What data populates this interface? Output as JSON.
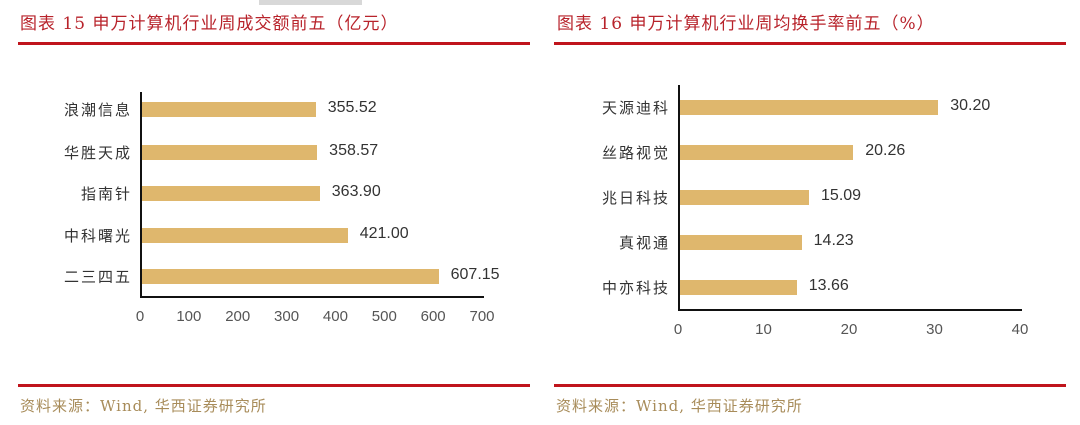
{
  "colors": {
    "title": "#b8232b",
    "rule": "#c0141c",
    "bar": "#dfb76d",
    "source": "#a88c5a"
  },
  "left": {
    "title": "图表 15 申万计算机行业周成交额前五（亿元）",
    "source": "资料来源：Wind, 华西证券研究所"
  },
  "right": {
    "title": "图表 16 申万计算机行业周均换手率前五（%）",
    "source": "资料来源：Wind, 华西证券研究所"
  },
  "chart_data": [
    {
      "type": "bar",
      "orientation": "horizontal",
      "title": "图表 15 申万计算机行业周成交额前五（亿元）",
      "categories": [
        "浪潮信息",
        "华胜天成",
        "指南针",
        "中科曙光",
        "二三四五"
      ],
      "values": [
        355.52,
        358.57,
        363.9,
        421.0,
        607.15
      ],
      "value_labels": [
        "355.52",
        "358.57",
        "363.90",
        "421.00",
        "607.15"
      ],
      "xlabel": "",
      "ylabel": "",
      "xlim": [
        0,
        700
      ],
      "xticks": [
        "0",
        "100",
        "200",
        "300",
        "400",
        "500",
        "600",
        "700"
      ],
      "grid": false,
      "legend": null,
      "source": "资料来源：Wind, 华西证券研究所"
    },
    {
      "type": "bar",
      "orientation": "horizontal",
      "title": "图表 16 申万计算机行业周均换手率前五（%）",
      "categories": [
        "天源迪科",
        "丝路视觉",
        "兆日科技",
        "真视通",
        "中亦科技"
      ],
      "values": [
        30.2,
        20.26,
        15.09,
        14.23,
        13.66
      ],
      "value_labels": [
        "30.20",
        "20.26",
        "15.09",
        "14.23",
        "13.66"
      ],
      "xlabel": "",
      "ylabel": "",
      "xlim": [
        0,
        40
      ],
      "xticks": [
        "0",
        "10",
        "20",
        "30",
        "40"
      ],
      "grid": false,
      "legend": null,
      "source": "资料来源：Wind, 华西证券研究所"
    }
  ]
}
